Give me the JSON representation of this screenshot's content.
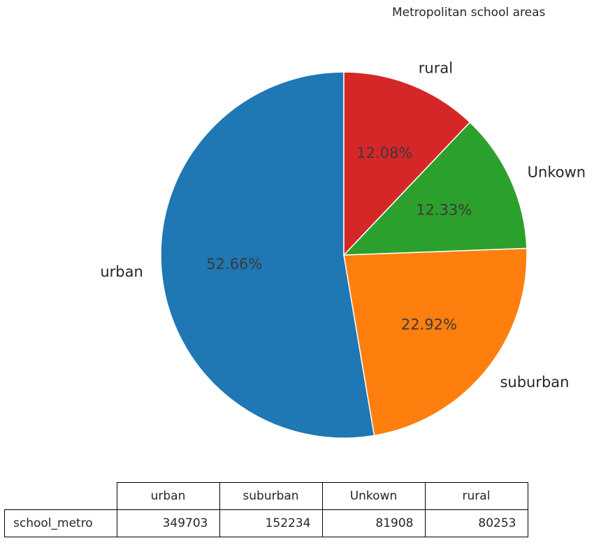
{
  "chart_data": {
    "type": "pie",
    "title": "Metropolitan school areas",
    "categories": [
      "urban",
      "suburban",
      "Unkown",
      "rural"
    ],
    "values": [
      349703,
      152234,
      81908,
      80253
    ],
    "percent_labels": [
      "52.66%",
      "22.92%",
      "12.33%",
      "12.08%"
    ],
    "colors": [
      "#1f77b4",
      "#ff7f0e",
      "#2ca02c",
      "#d62728"
    ],
    "start_angle": 90,
    "direction": "counterclockwise",
    "table": {
      "row_label": "school_metro",
      "columns": [
        "urban",
        "suburban",
        "Unkown",
        "rural"
      ],
      "values": [
        "349703",
        "152234",
        "81908",
        "80253"
      ]
    }
  }
}
